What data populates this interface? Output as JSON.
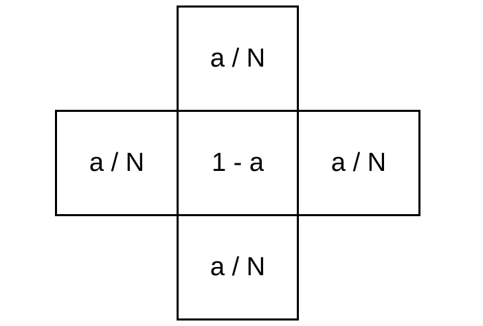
{
  "diagram": {
    "cells": {
      "top": "a / N",
      "left": "a / N",
      "center": "1 - a",
      "right": "a / N",
      "bottom": "a / N"
    },
    "colors": {
      "border": "#000000",
      "background": "#ffffff",
      "text": "#000000"
    }
  }
}
